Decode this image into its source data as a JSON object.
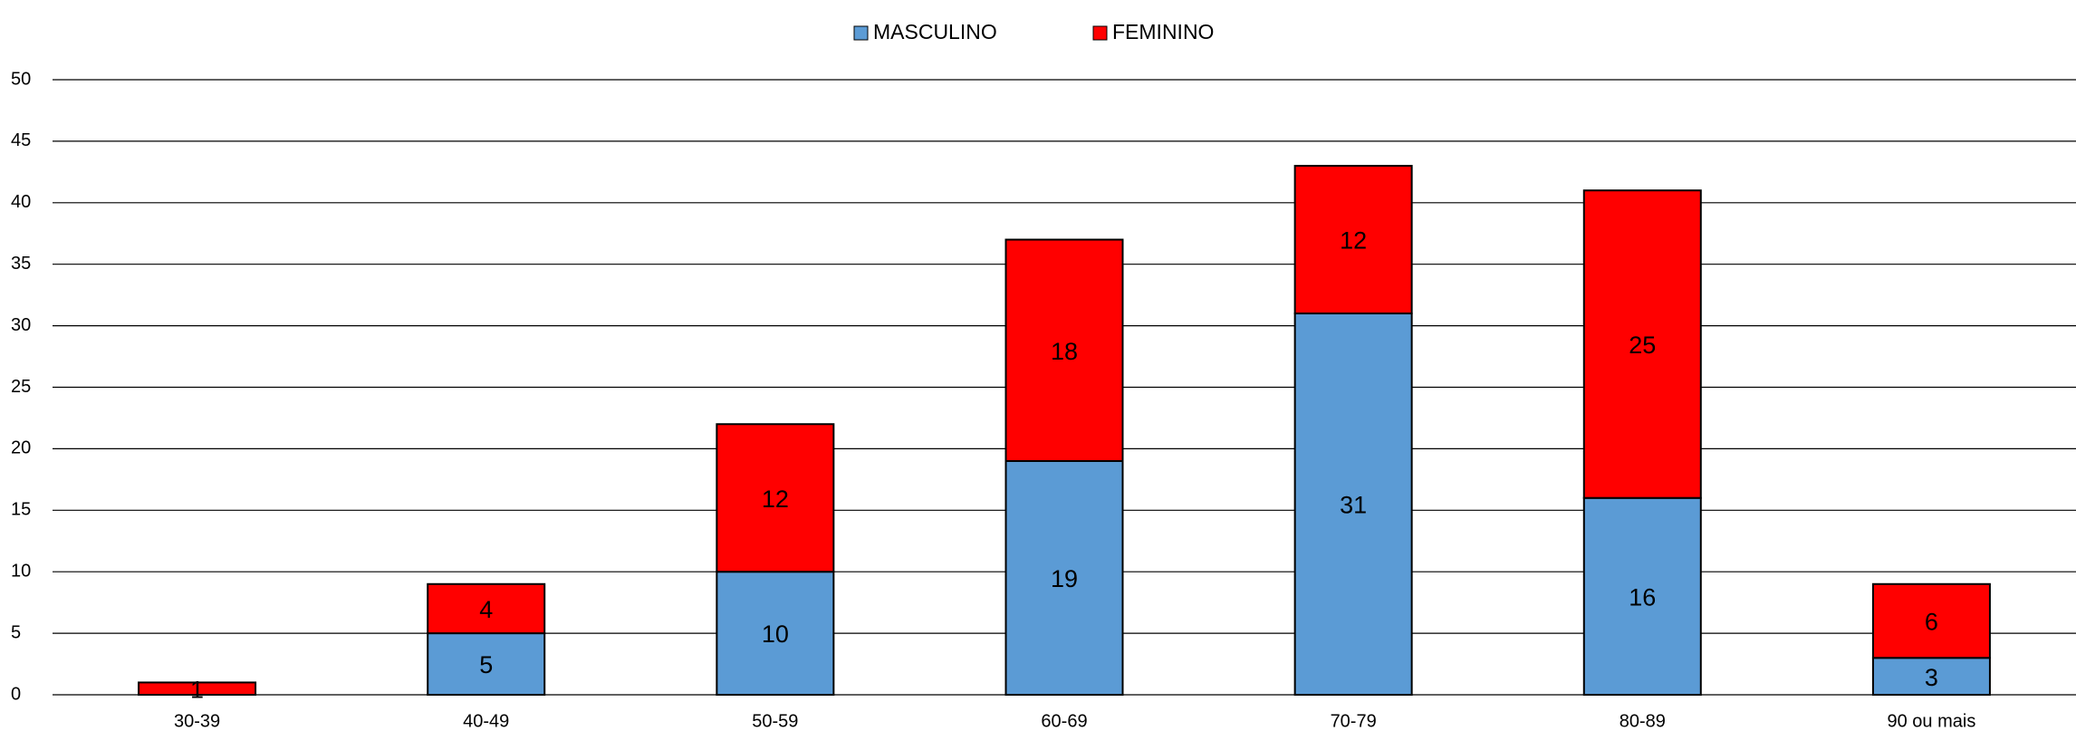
{
  "chart_data": {
    "type": "stacked_bar",
    "categories": [
      "30-39",
      "40-49",
      "50-59",
      "60-69",
      "70-79",
      "80-89",
      "90 ou mais"
    ],
    "series": [
      {
        "name": "MASCULINO",
        "color": "#5b9bd5",
        "values": [
          null,
          5,
          10,
          19,
          31,
          16,
          3
        ]
      },
      {
        "name": "FEMININO",
        "color": "#ff0000",
        "values": [
          1,
          4,
          12,
          18,
          12,
          25,
          6
        ]
      }
    ],
    "ylim": [
      0,
      50
    ],
    "yticks": [
      0,
      5,
      10,
      15,
      20,
      25,
      30,
      35,
      40,
      45,
      50
    ],
    "grid": true,
    "legend": "top"
  }
}
